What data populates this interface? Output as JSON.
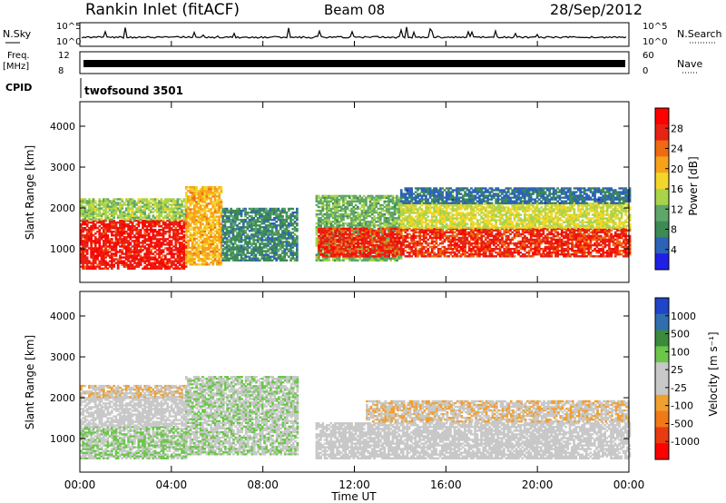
{
  "header": {
    "station": "Rankin Inlet (fitACF)",
    "beam": "Beam 08",
    "date": "28/Sep/2012"
  },
  "noise_panel": {
    "left_label": "N.Sky",
    "right_label": "N.Search",
    "ticks_left": [
      "10^5",
      "10^0"
    ],
    "ticks_right": [
      "10^5",
      "10^0"
    ]
  },
  "freq_panel": {
    "left_label_1": "Freq.",
    "left_label_2": "[MHz]",
    "right_label": "Nave",
    "ticks_left": [
      "12",
      "8"
    ],
    "ticks_right": [
      "60",
      "0"
    ]
  },
  "cpid": {
    "label": "CPID",
    "value": "twofsound 3501"
  },
  "colors": {
    "power": [
      "#1f1fe6",
      "#2c63b8",
      "#3d8a55",
      "#5fa66b",
      "#a9d44a",
      "#f3d62a",
      "#f7a21b",
      "#ef6a12",
      "#e82214",
      "#ff0000"
    ],
    "velocity": [
      "#2045c8",
      "#2f6fb0",
      "#3c8a3c",
      "#6cc64c",
      "#c8c8c8",
      "#c8c8c8",
      "#f0a030",
      "#f07a18",
      "#e83c10",
      "#ff0000"
    ],
    "trace": "#000000"
  },
  "chart_data": [
    {
      "type": "heatmap",
      "title": "Power",
      "xlabel": "",
      "ylabel": "Slant Range [km]",
      "x_ticks": [
        "00:00",
        "04:00",
        "08:00",
        "12:00",
        "16:00",
        "20:00",
        "00:00"
      ],
      "xlim_hours": [
        0,
        24
      ],
      "y_ticks": [
        "4000",
        "3000",
        "2000",
        "1000"
      ],
      "ylim_km": [
        180,
        4600
      ],
      "colorbar": {
        "label": "Power [dB]",
        "ticks": [
          "28",
          "24",
          "20",
          "16",
          "12",
          "8",
          "4"
        ],
        "range": [
          0,
          32
        ]
      },
      "bands": [
        {
          "start": 0.0,
          "end": 4.6,
          "lo": 500,
          "hi": 1700,
          "level": 28
        },
        {
          "start": 0.0,
          "end": 4.6,
          "lo": 1700,
          "hi": 2200,
          "level": 14
        },
        {
          "start": 4.6,
          "end": 6.2,
          "lo": 600,
          "hi": 2500,
          "level": 20
        },
        {
          "start": 6.2,
          "end": 9.5,
          "lo": 700,
          "hi": 2000,
          "level": 8
        },
        {
          "start": 10.3,
          "end": 14.0,
          "lo": 700,
          "hi": 2300,
          "level": 12
        },
        {
          "start": 10.4,
          "end": 24.0,
          "lo": 800,
          "hi": 1500,
          "level": 27
        },
        {
          "start": 14.0,
          "end": 24.0,
          "lo": 1500,
          "hi": 2100,
          "level": 16
        },
        {
          "start": 14.0,
          "end": 24.0,
          "lo": 2100,
          "hi": 2500,
          "level": 6
        }
      ]
    },
    {
      "type": "heatmap",
      "title": "Velocity",
      "xlabel": "Time UT",
      "ylabel": "Slant Range [km]",
      "x_ticks": [
        "00:00",
        "04:00",
        "08:00",
        "12:00",
        "16:00",
        "20:00",
        "00:00"
      ],
      "xlim_hours": [
        0,
        24
      ],
      "y_ticks": [
        "4000",
        "3000",
        "2000",
        "1000"
      ],
      "ylim_km": [
        180,
        4600
      ],
      "colorbar": {
        "label": "Velocity [m s⁻¹]",
        "ticks": [
          "1000",
          "500",
          "100",
          "25",
          "-25",
          "-100",
          "-500",
          "-1000"
        ],
        "range": [
          -1000,
          1000
        ]
      },
      "bands": [
        {
          "start": 0.0,
          "end": 4.6,
          "lo": 500,
          "hi": 1300,
          "level": 200
        },
        {
          "start": 0.0,
          "end": 4.6,
          "lo": 1300,
          "hi": 2000,
          "level": 0
        },
        {
          "start": 0.0,
          "end": 4.6,
          "lo": 2000,
          "hi": 2300,
          "level": -150
        },
        {
          "start": 4.6,
          "end": 9.5,
          "lo": 600,
          "hi": 2500,
          "level": 150
        },
        {
          "start": 10.3,
          "end": 24.0,
          "lo": 500,
          "hi": 1400,
          "level": 0
        },
        {
          "start": 12.5,
          "end": 24.0,
          "lo": 1400,
          "hi": 1900,
          "level": -150
        }
      ]
    }
  ]
}
